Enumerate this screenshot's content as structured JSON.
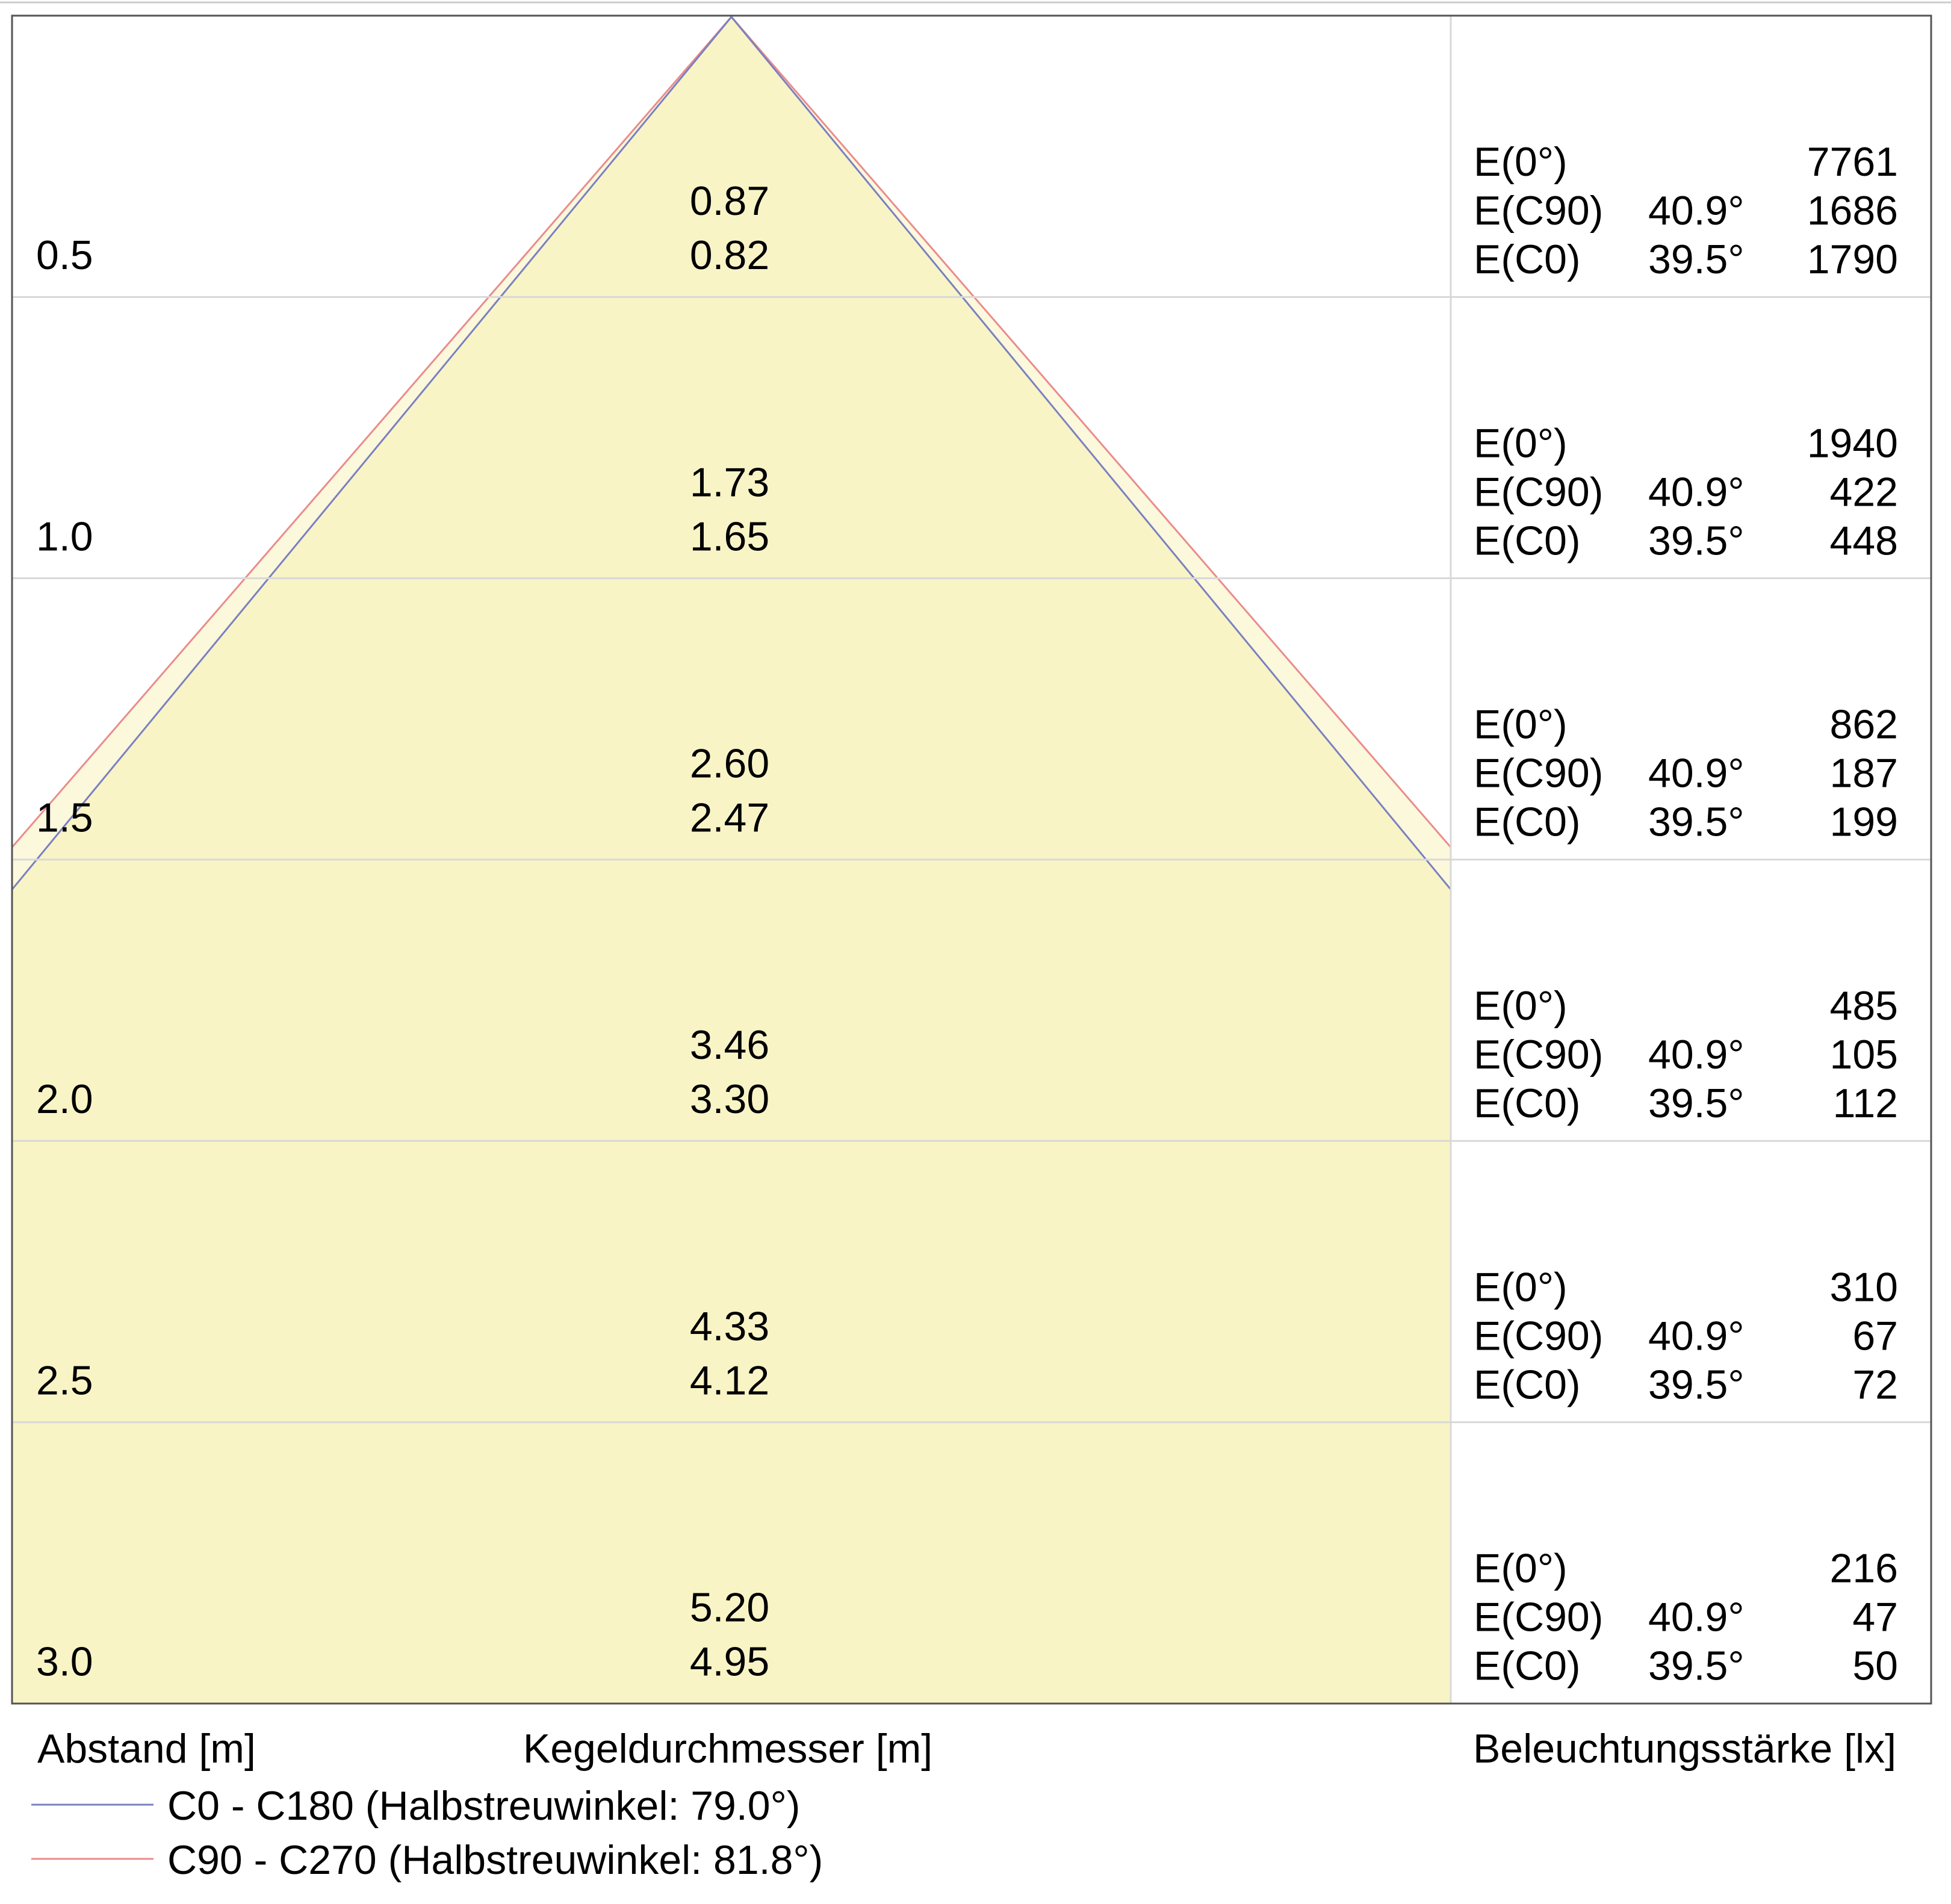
{
  "colors": {
    "cone_fill_inner": "#f8f4c6",
    "cone_fill_outer": "#fbf8dc",
    "grid": "#d8d8d8",
    "frame": "#555555",
    "c0_line": "#7b80c0",
    "c90_line": "#ea8c8c"
  },
  "chart_data": {
    "type": "cone-diagram",
    "half_angles_deg": {
      "c0": 79.0,
      "c90": 81.8
    },
    "rows": [
      {
        "distance": "0.5",
        "d_c90": "0.87",
        "d_c0": "0.82",
        "e0": "7761",
        "e_c90_angle": "40.9°",
        "e_c90": "1686",
        "e_c0_angle": "39.5°",
        "e_c0": "1790"
      },
      {
        "distance": "1.0",
        "d_c90": "1.73",
        "d_c0": "1.65",
        "e0": "1940",
        "e_c90_angle": "40.9°",
        "e_c90": "422",
        "e_c0_angle": "39.5°",
        "e_c0": "448"
      },
      {
        "distance": "1.5",
        "d_c90": "2.60",
        "d_c0": "2.47",
        "e0": "862",
        "e_c90_angle": "40.9°",
        "e_c90": "187",
        "e_c0_angle": "39.5°",
        "e_c0": "199"
      },
      {
        "distance": "2.0",
        "d_c90": "3.46",
        "d_c0": "3.30",
        "e0": "485",
        "e_c90_angle": "40.9°",
        "e_c90": "105",
        "e_c0_angle": "39.5°",
        "e_c0": "112"
      },
      {
        "distance": "2.5",
        "d_c90": "4.33",
        "d_c0": "4.12",
        "e0": "310",
        "e_c90_angle": "40.9°",
        "e_c90": "67",
        "e_c0_angle": "39.5°",
        "e_c0": "72"
      },
      {
        "distance": "3.0",
        "d_c90": "5.20",
        "d_c0": "4.95",
        "e0": "216",
        "e_c90_angle": "40.9°",
        "e_c90": "47",
        "e_c0_angle": "39.5°",
        "e_c0": "50"
      }
    ],
    "row_labels": {
      "e0": "E(0°)",
      "e_c90": "E(C90)",
      "e_c0": "E(C0)"
    },
    "axis_labels": {
      "distance": "Abstand [m]",
      "diameter": "Kegeldurchmesser [m]",
      "illuminance": "Beleuchtungsstärke [lx]"
    },
    "legend": [
      {
        "key": "c0",
        "label": "C0 - C180 (Halbstreuwinkel: 79.0°)"
      },
      {
        "key": "c90",
        "label": "C90 - C270 (Halbstreuwinkel: 81.8°)"
      }
    ]
  }
}
